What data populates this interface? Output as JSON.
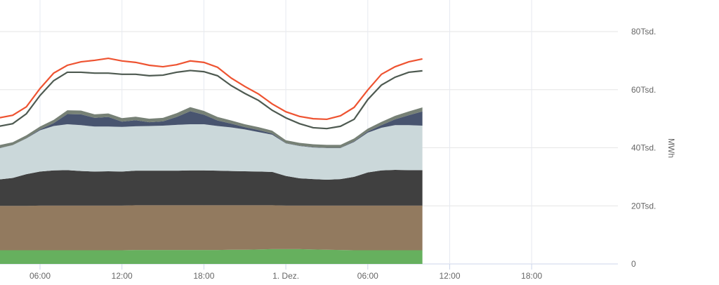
{
  "chart_data": {
    "type": "area",
    "stacked": true,
    "title": "",
    "xlabel": "",
    "ylabel": "MWh",
    "ylim": [
      0,
      80000
    ],
    "y_ticks": [
      "0",
      "20Tsd.",
      "40Tsd.",
      "60Tsd.",
      "80Tsd."
    ],
    "y_tick_values": [
      0,
      20000,
      40000,
      60000,
      80000
    ],
    "x_ticks": [
      "06:00",
      "12:00",
      "18:00",
      "1. Dez.",
      "06:00",
      "12:00",
      "18:00"
    ],
    "x_tick_hours": [
      6,
      12,
      18,
      24,
      30,
      36,
      42
    ],
    "x_range_hours": [
      3.07,
      48.3
    ],
    "x_hours": [
      3,
      4,
      5,
      6,
      7,
      8,
      9,
      10,
      11,
      12,
      13,
      14,
      15,
      16,
      17,
      18,
      19,
      20,
      21,
      22,
      23,
      24,
      25,
      26,
      27,
      28,
      29,
      30,
      31,
      32,
      33,
      34
    ],
    "grid": true,
    "legend": "none",
    "series": [
      {
        "name": "green",
        "color": "#66b05e",
        "values": [
          4.7,
          4.7,
          4.7,
          4.7,
          4.7,
          4.7,
          4.7,
          4.7,
          4.7,
          4.7,
          4.8,
          4.8,
          4.8,
          4.8,
          4.8,
          4.8,
          4.8,
          4.9,
          4.9,
          5.0,
          5.1,
          5.1,
          5.1,
          5.0,
          4.9,
          4.8,
          4.7,
          4.7,
          4.7,
          4.7,
          4.7,
          4.7
        ]
      },
      {
        "name": "brown",
        "color": "#927a5f",
        "values": [
          15.3,
          15.3,
          15.3,
          15.4,
          15.4,
          15.4,
          15.4,
          15.4,
          15.4,
          15.4,
          15.4,
          15.4,
          15.4,
          15.4,
          15.4,
          15.4,
          15.4,
          15.3,
          15.3,
          15.2,
          15.1,
          15.0,
          15.0,
          15.1,
          15.2,
          15.3,
          15.4,
          15.4,
          15.4,
          15.4,
          15.4,
          15.4
        ]
      },
      {
        "name": "dark",
        "color": "#404040",
        "values": [
          9.1,
          9.6,
          10.9,
          11.7,
          12.1,
          12.2,
          11.9,
          11.7,
          11.8,
          11.7,
          11.9,
          11.9,
          11.9,
          11.9,
          12.0,
          12.0,
          11.9,
          11.8,
          11.7,
          11.6,
          11.5,
          10.2,
          9.4,
          9.1,
          8.9,
          9.1,
          9.9,
          11.4,
          12.1,
          12.3,
          12.2,
          12.2
        ]
      },
      {
        "name": "light",
        "color": "#cbd8da",
        "values": [
          10.7,
          11.3,
          12.3,
          14.2,
          15.3,
          15.8,
          15.8,
          15.5,
          15.4,
          15.4,
          15.3,
          15.4,
          15.5,
          15.8,
          15.9,
          15.9,
          15.4,
          15.0,
          14.4,
          13.6,
          12.8,
          11.2,
          11.1,
          10.9,
          10.9,
          10.7,
          12.0,
          13.7,
          14.7,
          15.4,
          15.5,
          15.3
        ]
      },
      {
        "name": "navy",
        "color": "#48546f",
        "values": [
          0.1,
          0.0,
          0.1,
          0.3,
          1.0,
          3.5,
          3.7,
          3.0,
          3.3,
          1.8,
          2.1,
          1.3,
          1.5,
          2.7,
          4.5,
          3.3,
          1.9,
          1.3,
          0.8,
          0.7,
          0.4,
          0.1,
          0.1,
          0.1,
          0.1,
          0.1,
          0.2,
          0.4,
          0.9,
          2.0,
          3.4,
          4.9
        ]
      },
      {
        "name": "gray",
        "color": "#778176",
        "values": [
          1.0,
          1.0,
          1.0,
          1.0,
          1.1,
          1.3,
          1.3,
          1.2,
          1.2,
          1.2,
          1.2,
          1.2,
          1.2,
          1.3,
          1.4,
          1.3,
          1.2,
          1.1,
          1.0,
          1.0,
          1.0,
          1.0,
          1.0,
          1.0,
          1.0,
          1.0,
          1.0,
          1.0,
          1.1,
          1.2,
          1.3,
          1.4
        ]
      }
    ],
    "lines": [
      {
        "name": "red-line",
        "color": "#ee5331",
        "values": [
          50.3,
          51.2,
          54.1,
          60.4,
          65.7,
          68.4,
          69.6,
          70.1,
          70.8,
          69.9,
          69.4,
          68.4,
          67.9,
          68.6,
          69.9,
          69.4,
          67.7,
          64.0,
          61.1,
          58.5,
          55.1,
          52.4,
          50.8,
          50.0,
          49.8,
          51.0,
          53.9,
          59.9,
          65.3,
          67.9,
          69.6,
          70.6
        ]
      },
      {
        "name": "dark-line",
        "color": "#4e5a51",
        "values": [
          47.4,
          48.3,
          51.7,
          58.0,
          63.1,
          66.0,
          66.0,
          65.7,
          65.7,
          65.3,
          65.3,
          64.8,
          65.0,
          66.0,
          66.6,
          66.2,
          64.8,
          61.4,
          58.7,
          56.3,
          52.9,
          50.3,
          48.3,
          46.9,
          46.6,
          47.4,
          49.8,
          56.6,
          61.6,
          64.3,
          66.0,
          66.5
        ]
      }
    ],
    "value_unit": "Tsd. MWh"
  }
}
